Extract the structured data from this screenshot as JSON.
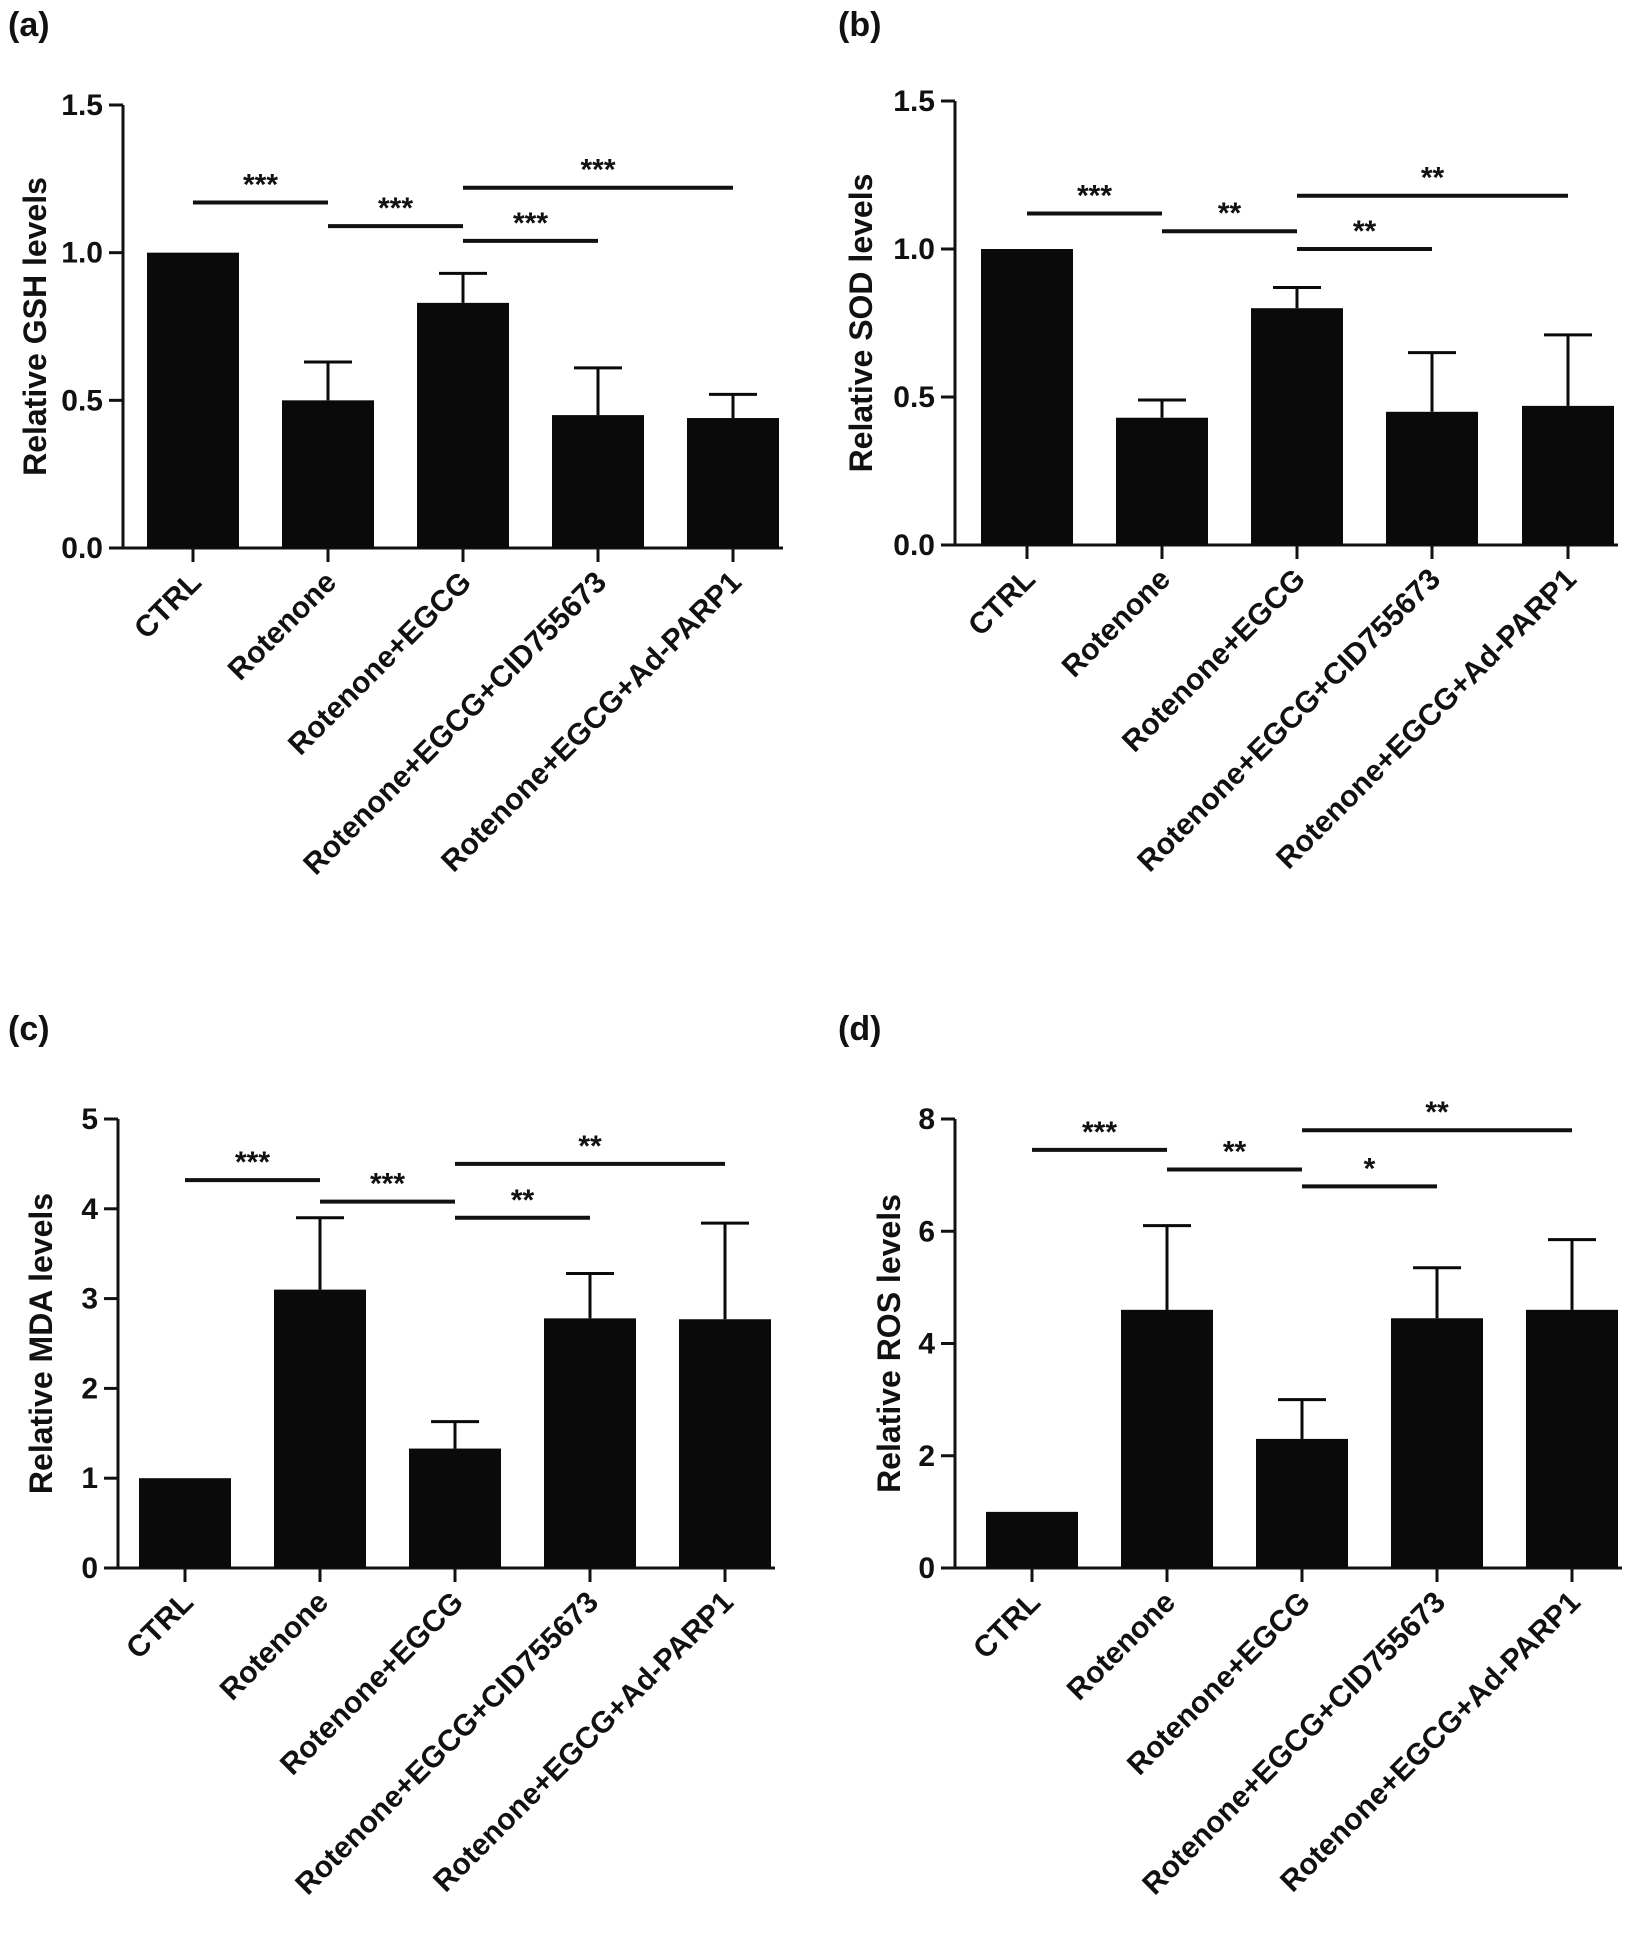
{
  "chart_data": [
    {
      "type": "bar",
      "panel_label": "(a)",
      "ylabel": "Relative GSH levels",
      "categories": [
        "CTRL",
        "Rotenone",
        "Rotenone+EGCG",
        "Rotenone+EGCG+CID755673",
        "Rotenone+EGCG+Ad-PARP1"
      ],
      "values": [
        1.0,
        0.5,
        0.83,
        0.45,
        0.44
      ],
      "errors": [
        0,
        0.13,
        0.1,
        0.16,
        0.08
      ],
      "ylim": [
        0,
        1.5
      ],
      "yticks": [
        0.0,
        0.5,
        1.0,
        1.5
      ],
      "tick_labels": [
        "0.0",
        "0.5",
        "1.0",
        "1.5"
      ],
      "decimals": 1,
      "significance": [
        {
          "from": 0,
          "to": 1,
          "y": 1.17,
          "label": "***"
        },
        {
          "from": 1,
          "to": 2,
          "y": 1.09,
          "label": "***"
        },
        {
          "from": 2,
          "to": 3,
          "y": 1.04,
          "label": "***"
        },
        {
          "from": 2,
          "to": 4,
          "y": 1.22,
          "label": "***"
        }
      ]
    },
    {
      "type": "bar",
      "panel_label": "(b)",
      "ylabel": "Relative SOD levels",
      "categories": [
        "CTRL",
        "Rotenone",
        "Rotenone+EGCG",
        "Rotenone+EGCG+CID755673",
        "Rotenone+EGCG+Ad-PARP1"
      ],
      "values": [
        1.0,
        0.43,
        0.8,
        0.45,
        0.47
      ],
      "errors": [
        0,
        0.06,
        0.07,
        0.2,
        0.24
      ],
      "ylim": [
        0,
        1.5
      ],
      "yticks": [
        0.0,
        0.5,
        1.0,
        1.5
      ],
      "tick_labels": [
        "0.0",
        "0.5",
        "1.0",
        "1.5"
      ],
      "decimals": 1,
      "significance": [
        {
          "from": 0,
          "to": 1,
          "y": 1.12,
          "label": "***"
        },
        {
          "from": 1,
          "to": 2,
          "y": 1.06,
          "label": "**"
        },
        {
          "from": 2,
          "to": 3,
          "y": 1.0,
          "label": "**"
        },
        {
          "from": 2,
          "to": 4,
          "y": 1.18,
          "label": "**"
        }
      ]
    },
    {
      "type": "bar",
      "panel_label": "(c)",
      "ylabel": "Relative MDA levels",
      "categories": [
        "CTRL",
        "Rotenone",
        "Rotenone+EGCG",
        "Rotenone+EGCG+CID755673",
        "Rotenone+EGCG+Ad-PARP1"
      ],
      "values": [
        1.0,
        3.1,
        1.33,
        2.78,
        2.77
      ],
      "errors": [
        0,
        0.8,
        0.3,
        0.5,
        1.07
      ],
      "ylim": [
        0,
        5
      ],
      "yticks": [
        0,
        1,
        2,
        3,
        4,
        5
      ],
      "tick_labels": [
        "0",
        "1",
        "2",
        "3",
        "4",
        "5"
      ],
      "decimals": 0,
      "significance": [
        {
          "from": 0,
          "to": 1,
          "y": 4.32,
          "label": "***"
        },
        {
          "from": 1,
          "to": 2,
          "y": 4.08,
          "label": "***"
        },
        {
          "from": 2,
          "to": 3,
          "y": 3.9,
          "label": "**"
        },
        {
          "from": 2,
          "to": 4,
          "y": 4.5,
          "label": "**"
        }
      ]
    },
    {
      "type": "bar",
      "panel_label": "(d)",
      "ylabel": "Relative ROS levels",
      "categories": [
        "CTRL",
        "Rotenone",
        "Rotenone+EGCG",
        "Rotenone+EGCG+CID755673",
        "Rotenone+EGCG+Ad-PARP1"
      ],
      "values": [
        1.0,
        4.6,
        2.3,
        4.45,
        4.6
      ],
      "errors": [
        0,
        1.5,
        0.7,
        0.9,
        1.25
      ],
      "ylim": [
        0,
        8
      ],
      "yticks": [
        0,
        2,
        4,
        6,
        8
      ],
      "tick_labels": [
        "0",
        "2",
        "4",
        "6",
        "8"
      ],
      "decimals": 0,
      "significance": [
        {
          "from": 0,
          "to": 1,
          "y": 7.45,
          "label": "***"
        },
        {
          "from": 1,
          "to": 2,
          "y": 7.1,
          "label": "**"
        },
        {
          "from": 2,
          "to": 3,
          "y": 6.8,
          "label": "*"
        },
        {
          "from": 2,
          "to": 4,
          "y": 7.8,
          "label": "**"
        }
      ]
    }
  ]
}
